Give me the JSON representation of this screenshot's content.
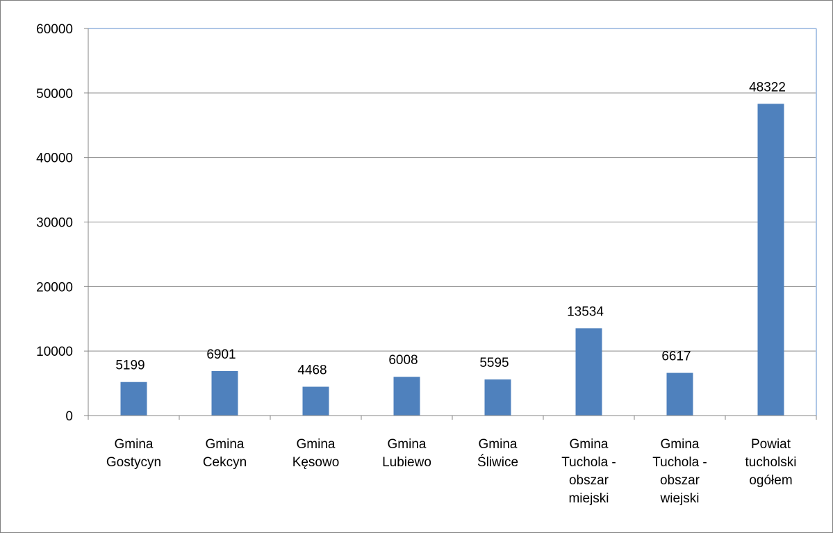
{
  "chart_data": {
    "type": "bar",
    "title": "",
    "xlabel": "",
    "ylabel": "",
    "categories": [
      [
        "Gmina",
        "Gostycyn"
      ],
      [
        "Gmina",
        "Cekcyn"
      ],
      [
        "Gmina",
        "Kęsowo"
      ],
      [
        "Gmina",
        "Lubiewo"
      ],
      [
        "Gmina",
        "Śliwice"
      ],
      [
        "Gmina",
        "Tuchola -",
        "obszar",
        "miejski"
      ],
      [
        "Gmina",
        "Tuchola -",
        "obszar",
        "wiejski"
      ],
      [
        "Powiat",
        "tucholski",
        "ogółem"
      ]
    ],
    "values": [
      5199,
      6901,
      4468,
      6008,
      5595,
      13534,
      6617,
      48322
    ],
    "data_labels": [
      "5199",
      "6901",
      "4468",
      "6008",
      "5595",
      "13534",
      "6617",
      "48322"
    ],
    "ylim": [
      0,
      60000
    ],
    "yticks": [
      "0",
      "10000",
      "20000",
      "30000",
      "40000",
      "50000",
      "60000"
    ],
    "ytick_values": [
      0,
      10000,
      20000,
      30000,
      40000,
      50000,
      60000
    ],
    "grid": true,
    "legend": "none",
    "colors": {
      "bar": "#4f81bd",
      "grid": "#868686",
      "axis": "#868686",
      "plot_border": "#aec6e6"
    }
  }
}
